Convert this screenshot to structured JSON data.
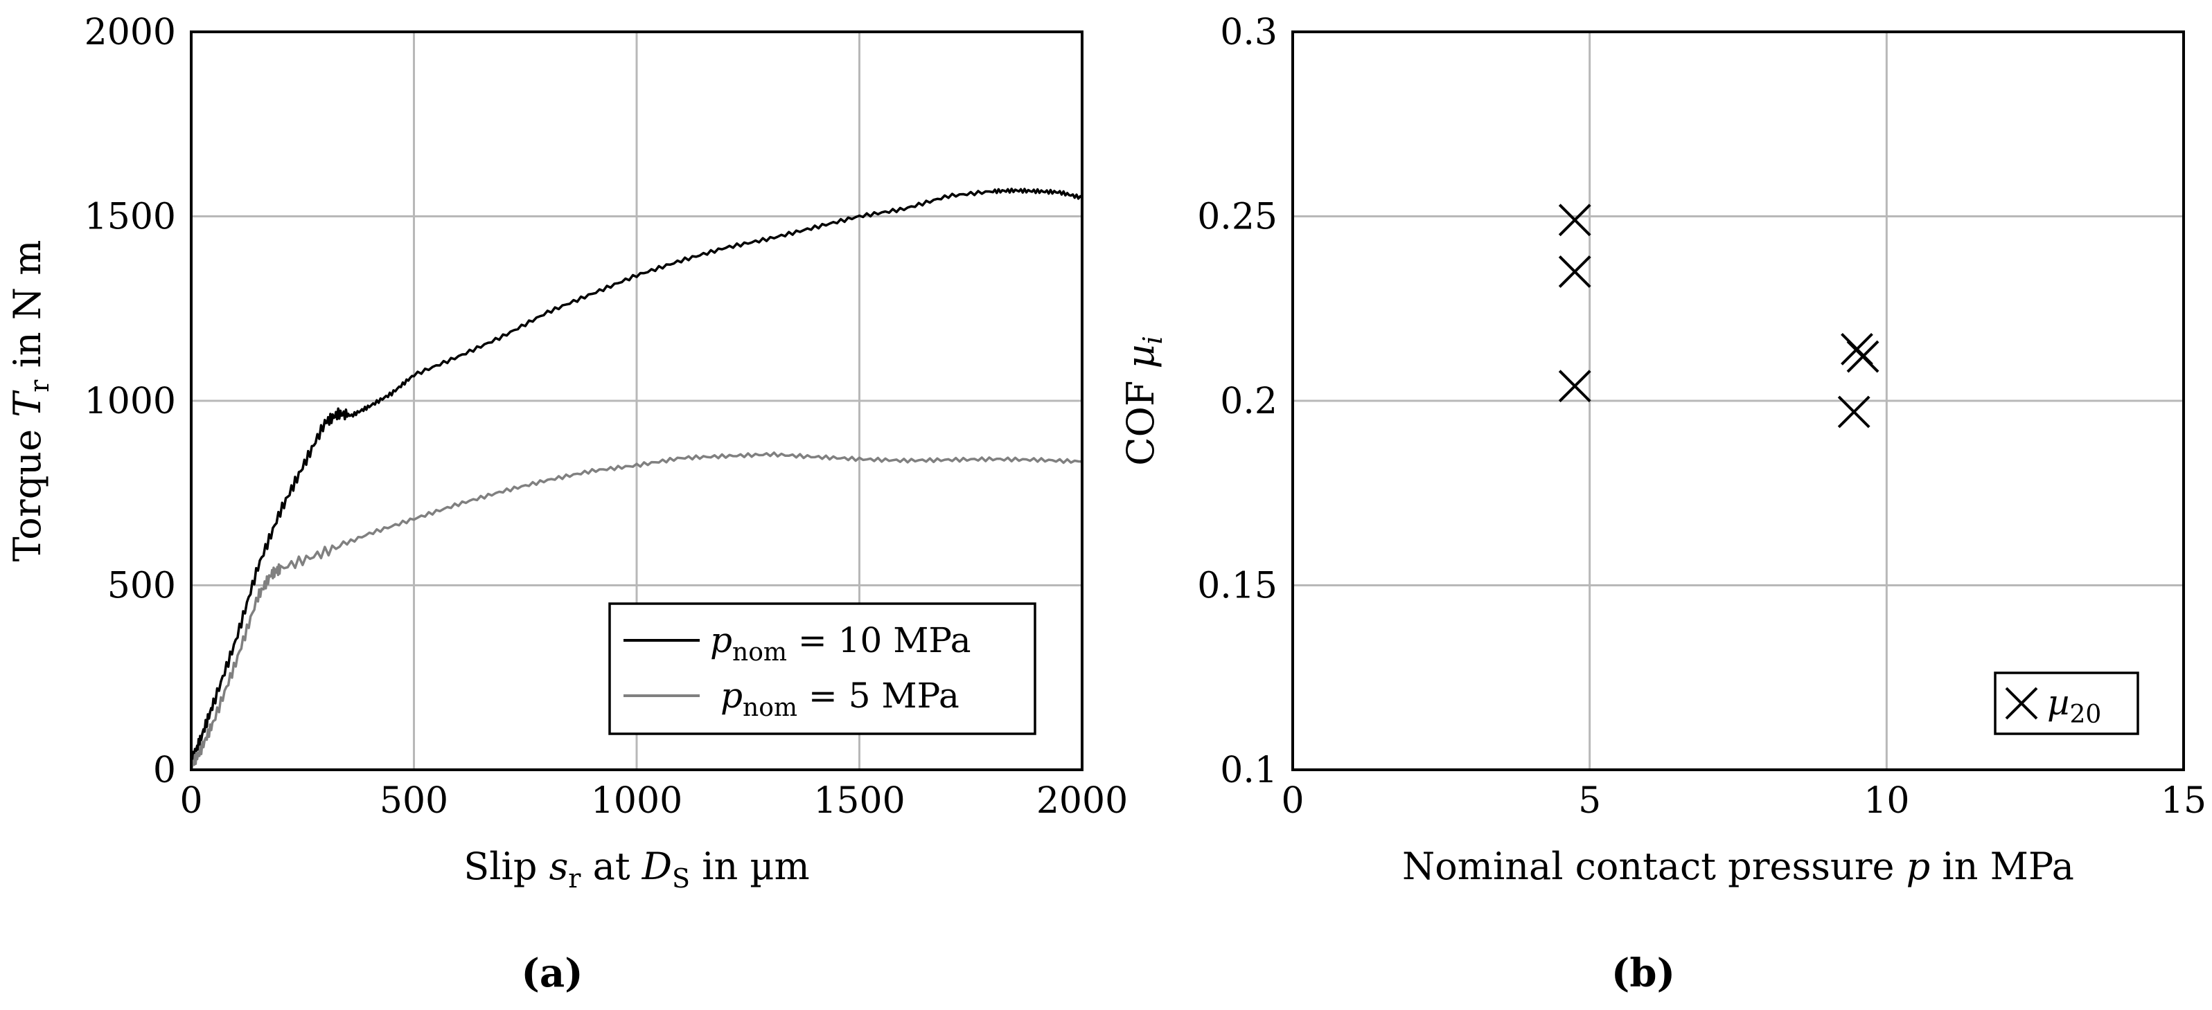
{
  "chart_data": [
    {
      "type": "line",
      "caption": "(a)",
      "xlabel": "Slip s_r at D_S in µm",
      "ylabel": "Torque T_r in N m",
      "xlim": [
        0,
        2000
      ],
      "ylim": [
        0,
        2000
      ],
      "x_ticks": [
        "0",
        "500",
        "1000",
        "1500",
        "2000"
      ],
      "y_ticks": [
        "0",
        "500",
        "1000",
        "1500",
        "2000"
      ],
      "grid": true,
      "legend_position": "bottom-right",
      "series": [
        {
          "name": "p_nom = 10 MPa",
          "color": "#000000",
          "x": [
            0,
            20,
            50,
            100,
            150,
            200,
            250,
            300,
            330,
            360,
            400,
            450,
            500,
            600,
            700,
            800,
            900,
            1000,
            1100,
            1200,
            1300,
            1400,
            1500,
            1600,
            1700,
            1800,
            1850,
            1900,
            1950,
            2000
          ],
          "y": [
            20,
            80,
            180,
            350,
            550,
            700,
            820,
            940,
            965,
            960,
            985,
            1020,
            1070,
            1120,
            1175,
            1240,
            1290,
            1340,
            1380,
            1415,
            1440,
            1470,
            1500,
            1520,
            1555,
            1568,
            1570,
            1568,
            1565,
            1550
          ]
        },
        {
          "name": "p_nom = 5 MPa",
          "color": "#808080",
          "x": [
            0,
            20,
            50,
            100,
            150,
            180,
            200,
            300,
            400,
            500,
            600,
            700,
            800,
            900,
            1000,
            1100,
            1200,
            1300,
            1400,
            1500,
            1600,
            1700,
            1800,
            1900,
            2000
          ],
          "y": [
            10,
            50,
            130,
            290,
            470,
            530,
            545,
            590,
            640,
            680,
            720,
            755,
            785,
            810,
            825,
            845,
            850,
            855,
            848,
            842,
            838,
            840,
            842,
            840,
            835
          ]
        }
      ]
    },
    {
      "type": "scatter",
      "caption": "(b)",
      "xlabel": "Nominal contact pressure p in MPa",
      "ylabel": "COF µ_i",
      "xlim": [
        0,
        15
      ],
      "ylim": [
        0.1,
        0.3
      ],
      "x_ticks": [
        "0",
        "5",
        "10",
        "15"
      ],
      "y_ticks": [
        "0.1",
        "0.15",
        "0.2",
        "0.25",
        "0.3"
      ],
      "grid": true,
      "legend_position": "bottom-right",
      "series": [
        {
          "name": "µ20",
          "marker": "x",
          "color": "#000000",
          "x": [
            4.75,
            4.75,
            4.75,
            9.5,
            9.6,
            9.45
          ],
          "y": [
            0.249,
            0.235,
            0.204,
            0.214,
            0.212,
            0.197
          ]
        }
      ]
    }
  ]
}
